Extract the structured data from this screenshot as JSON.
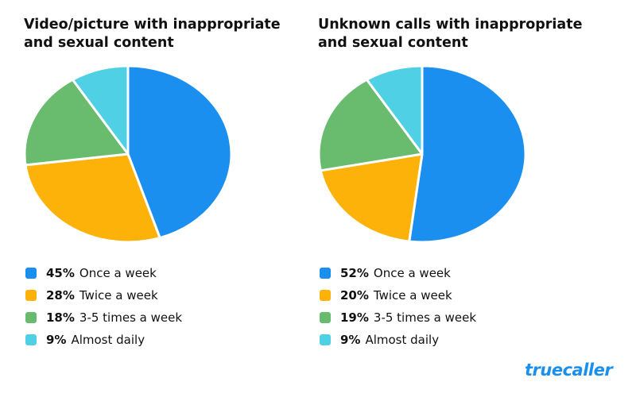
{
  "chart_data": [
    {
      "type": "pie",
      "title": "Video/picture with inappropriate and sexual content",
      "slices": [
        {
          "label": "Once a week",
          "value": 45,
          "value_label": "45%",
          "color": "#1b8fef"
        },
        {
          "label": "Twice a week",
          "value": 28,
          "value_label": "28%",
          "color": "#fdb20a"
        },
        {
          "label": "3-5 times a week",
          "value": 18,
          "value_label": "18%",
          "color": "#69bb6e"
        },
        {
          "label": "Almost daily",
          "value": 9,
          "value_label": "9%",
          "color": "#4fd0e5"
        }
      ],
      "legend_position": "bottom-left"
    },
    {
      "type": "pie",
      "title": "Unknown calls with inappropriate and sexual content",
      "slices": [
        {
          "label": "Once a week",
          "value": 52,
          "value_label": "52%",
          "color": "#1b8fef"
        },
        {
          "label": "Twice a week",
          "value": 20,
          "value_label": "20%",
          "color": "#fdb20a"
        },
        {
          "label": "3-5 times a week",
          "value": 19,
          "value_label": "19%",
          "color": "#69bb6e"
        },
        {
          "label": "Almost daily",
          "value": 9,
          "value_label": "9%",
          "color": "#4fd0e5"
        }
      ],
      "legend_position": "bottom-left"
    }
  ],
  "brand": {
    "logo_text": "truecaller",
    "color": "#1b8fec"
  }
}
